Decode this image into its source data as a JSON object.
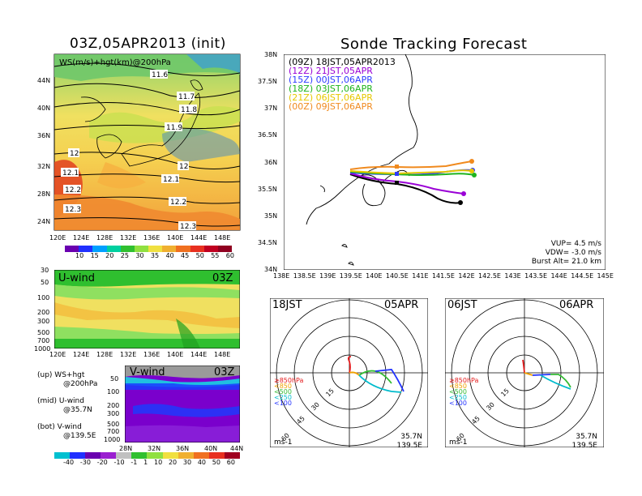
{
  "left_title": "03Z,05APR2013 (init)",
  "right_title": "Sonde Tracking Forecast",
  "map_panel": {
    "label": "WS(m/s)+hgt(km)@200hPa",
    "lat_ticks": [
      "44N",
      "40N",
      "36N",
      "32N",
      "28N",
      "24N"
    ],
    "lon_ticks": [
      "120E",
      "124E",
      "128E",
      "132E",
      "136E",
      "140E",
      "144E",
      "148E"
    ],
    "contour_labels": [
      "11.6",
      "11.7",
      "11.8",
      "11.9",
      "12",
      "12",
      "12.1",
      "12.1",
      "12.2",
      "12.2",
      "12.3",
      "12.3"
    ]
  },
  "ws_colorbar": [
    "10",
    "15",
    "20",
    "25",
    "30",
    "35",
    "40",
    "45",
    "50",
    "55",
    "60"
  ],
  "uwind_panel": {
    "label": "U-wind",
    "time": "03Z",
    "p_ticks": [
      "30",
      "50",
      "100",
      "200",
      "300",
      "500",
      "700",
      "1000"
    ],
    "lon_ticks": [
      "120E",
      "124E",
      "128E",
      "132E",
      "136E",
      "140E",
      "144E",
      "148E"
    ]
  },
  "vwind_panel": {
    "label": "V-wind",
    "time": "03Z",
    "p_ticks": [
      "50",
      "100",
      "200",
      "300",
      "500",
      "700",
      "1000"
    ],
    "lat_ticks": [
      "28N",
      "32N",
      "36N",
      "40N",
      "44N"
    ]
  },
  "notes": [
    {
      "a": "(up) WS+hgt",
      "b": "@200hPa"
    },
    {
      "a": "(mid) U-wind",
      "b": "@35.7N"
    },
    {
      "a": "(bot) V-wind",
      "b": "@139.5E"
    }
  ],
  "wind_colorbar": [
    "-40",
    "-30",
    "-20",
    "-10",
    "-1",
    "1",
    "10",
    "20",
    "30",
    "40",
    "50",
    "60"
  ],
  "track_panel": {
    "legend": [
      {
        "text": "(09Z) 18JST,05APR2013",
        "color": "#000000"
      },
      {
        "text": "(12Z) 21JST,05APR",
        "color": "#9a00d6"
      },
      {
        "text": "(15Z) 00JST,06APR",
        "color": "#2d3cff"
      },
      {
        "text": "(18Z) 03JST,06APR",
        "color": "#1fb41f"
      },
      {
        "text": "(21Z) 06JST,06APR",
        "color": "#e6c800"
      },
      {
        "text": "(00Z) 09JST,06APR",
        "color": "#f08a1e"
      }
    ],
    "lat_ticks": [
      "38N",
      "37.5N",
      "37N",
      "36.5N",
      "36N",
      "35.5N",
      "35N",
      "34.5N",
      "34N"
    ],
    "lon_ticks": [
      "138E",
      "138.5E",
      "139E",
      "139.5E",
      "140E",
      "140.5E",
      "141E",
      "141.5E",
      "142E",
      "142.5E",
      "143E",
      "143.5E",
      "144E",
      "144.5E",
      "145E"
    ],
    "info": [
      "VUP= 4.5 m/s",
      "VDW= -3.0 m/s",
      "Burst Alt= 21.0 km"
    ]
  },
  "polar_panels": [
    {
      "time": "18JST",
      "date": "05APR",
      "rings": [
        "15",
        "30",
        "45",
        "60"
      ],
      "levels": [
        "≥850hPa",
        "<850",
        "<500",
        "<250",
        "<100"
      ],
      "unit": "ms-1",
      "pos1": "35.7N",
      "pos2": "139.5E"
    },
    {
      "time": "06JST",
      "date": "06APR",
      "rings": [
        "15",
        "30",
        "45",
        "60"
      ],
      "levels": [
        "≥850hPa",
        "<850",
        "<500",
        "<250",
        "<100"
      ],
      "unit": "ms-1",
      "pos1": "35.7N",
      "pos2": "139.5E"
    }
  ],
  "colors": {
    "level_colors": [
      "#e41a1c",
      "#f0a000",
      "#33bb33",
      "#00bbcc",
      "#2233ff"
    ]
  }
}
